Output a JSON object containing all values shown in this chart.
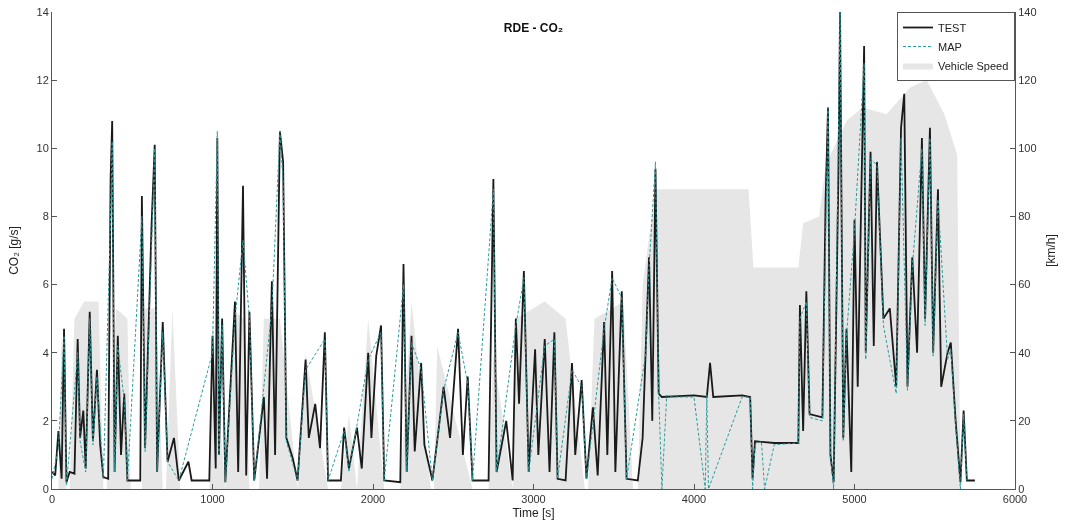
{
  "chart_data": {
    "type": "line",
    "title": "RDE - CO₂",
    "xlabel": "Time [s]",
    "ylabel": "CO₂ [g/s]",
    "y2label": "[km/h]",
    "xlim": [
      0,
      6000
    ],
    "xticks": [
      0,
      1000,
      2000,
      3000,
      4000,
      5000,
      6000
    ],
    "ylim": [
      0,
      14
    ],
    "yticks": [
      0,
      2,
      4,
      6,
      8,
      10,
      12,
      14
    ],
    "y2lim": [
      0,
      140
    ],
    "y2ticks": [
      0,
      20,
      40,
      60,
      80,
      100,
      120,
      140
    ],
    "legend": "top right",
    "series": [
      {
        "name": "TEST",
        "color": "#1a1a1a",
        "line_style": "solid",
        "x": [
          0,
          20,
          40,
          60,
          75,
          90,
          110,
          140,
          160,
          175,
          195,
          210,
          235,
          255,
          280,
          300,
          320,
          350,
          365,
          375,
          390,
          410,
          430,
          450,
          470,
          550,
          560,
          580,
          620,
          640,
          655,
          690,
          720,
          760,
          790,
          850,
          870,
          980,
          1000,
          1020,
          1030,
          1040,
          1060,
          1080,
          1140,
          1160,
          1190,
          1210,
          1230,
          1260,
          1320,
          1340,
          1370,
          1390,
          1420,
          1440,
          1460,
          1500,
          1530,
          1580,
          1600,
          1640,
          1670,
          1700,
          1720,
          1800,
          1820,
          1850,
          1900,
          1930,
          1970,
          1990,
          2020,
          2050,
          2070,
          2170,
          2190,
          2210,
          2240,
          2260,
          2300,
          2320,
          2370,
          2410,
          2440,
          2480,
          2530,
          2560,
          2590,
          2620,
          2720,
          2750,
          2770,
          2830,
          2870,
          2890,
          2910,
          2940,
          2970,
          3010,
          3030,
          3070,
          3100,
          3130,
          3150,
          3200,
          3240,
          3260,
          3300,
          3330,
          3370,
          3400,
          3440,
          3460,
          3490,
          3510,
          3550,
          3580,
          3650,
          3680,
          3700,
          3720,
          3740,
          3760,
          3780,
          3800,
          4000,
          4080,
          4100,
          4120,
          4300,
          4350,
          4365,
          4380,
          4500,
          4650,
          4660,
          4680,
          4700,
          4720,
          4800,
          4820,
          4835,
          4850,
          4870,
          4900,
          4910,
          4930,
          4950,
          4980,
          5000,
          5020,
          5060,
          5070,
          5100,
          5120,
          5140,
          5180,
          5220,
          5260,
          5290,
          5310,
          5330,
          5360,
          5390,
          5420,
          5440,
          5470,
          5490,
          5520,
          5540,
          5580,
          5600,
          5630,
          5660,
          5680,
          5700,
          5750
        ],
        "values": [
          0.5,
          0.4,
          1.7,
          0.3,
          4.7,
          0.2,
          0.5,
          0.45,
          4.4,
          1.5,
          2.3,
          0.6,
          5.2,
          1.4,
          3.5,
          1.3,
          0.35,
          0.3,
          9.1,
          10.8,
          0.5,
          4.5,
          1.0,
          2.8,
          0.25,
          0.25,
          8.6,
          1.2,
          7.7,
          10.1,
          0.5,
          4.9,
          0.8,
          1.5,
          0.25,
          0.8,
          0.25,
          0.25,
          4.5,
          0.6,
          10.3,
          1.0,
          5.0,
          0.2,
          5.5,
          0.5,
          8.9,
          0.4,
          5.2,
          0.25,
          2.7,
          0.3,
          6.1,
          1.0,
          10.5,
          9.6,
          1.5,
          0.9,
          0.25,
          3.8,
          1.5,
          2.5,
          1.2,
          4.6,
          0.25,
          0.25,
          1.8,
          0.6,
          1.8,
          0.6,
          4.0,
          1.5,
          3.9,
          4.8,
          0.25,
          0.2,
          6.6,
          0.5,
          4.5,
          1.1,
          3.7,
          1.3,
          0.25,
          1.8,
          3.0,
          1.5,
          4.7,
          1.0,
          3.3,
          0.25,
          0.25,
          9.1,
          0.5,
          2.0,
          0.25,
          5.0,
          2.5,
          6.4,
          0.5,
          4.1,
          1.0,
          4.4,
          0.5,
          4.6,
          0.3,
          0.25,
          3.7,
          1.0,
          3.2,
          0.3,
          2.4,
          0.4,
          4.9,
          1.0,
          6.4,
          0.5,
          5.8,
          0.3,
          0.25,
          1.5,
          4.2,
          6.8,
          2.0,
          9.4,
          2.8,
          2.7,
          2.75,
          2.7,
          3.7,
          2.7,
          2.75,
          2.7,
          0.3,
          1.4,
          1.35,
          1.35,
          5.4,
          1.7,
          5.8,
          2.2,
          2.1,
          8.5,
          11.2,
          1.0,
          0.2,
          9.3,
          14.0,
          1.5,
          4.7,
          0.5,
          7.9,
          3.0,
          13.0,
          4.0,
          9.9,
          4.2,
          9.6,
          5.0,
          5.3,
          3.0,
          10.6,
          11.6,
          3.0,
          6.8,
          4.0,
          10.3,
          5.0,
          10.6,
          4.0,
          8.8,
          3.0,
          4.0,
          4.3,
          2.0,
          0.2,
          2.3,
          0.25,
          0.25
        ]
      },
      {
        "name": "MAP",
        "color": "#2a9d9d",
        "line_style": "dashed",
        "x": [
          0,
          40,
          75,
          90,
          160,
          175,
          210,
          235,
          255,
          280,
          320,
          365,
          375,
          390,
          410,
          450,
          470,
          560,
          580,
          640,
          655,
          690,
          720,
          790,
          1000,
          1030,
          1040,
          1060,
          1080,
          1140,
          1190,
          1230,
          1260,
          1370,
          1420,
          1440,
          1460,
          1530,
          1580,
          1700,
          1720,
          1820,
          1850,
          1970,
          2050,
          2070,
          2190,
          2210,
          2240,
          2300,
          2370,
          2440,
          2530,
          2590,
          2620,
          2750,
          2770,
          2890,
          2940,
          2970,
          3070,
          3130,
          3150,
          3240,
          3300,
          3330,
          3440,
          3490,
          3550,
          3580,
          3700,
          3720,
          3760,
          3780,
          3800,
          3830,
          3850,
          4000,
          4070,
          4080,
          4090,
          4300,
          4350,
          4365,
          4380,
          4420,
          4440,
          4500,
          4650,
          4660,
          4700,
          4720,
          4800,
          4835,
          4850,
          4870,
          4910,
          4930,
          4950,
          5000,
          5060,
          5070,
          5100,
          5140,
          5180,
          5260,
          5290,
          5330,
          5360,
          5420,
          5440,
          5470,
          5490,
          5520,
          5580,
          5600,
          5630,
          5660,
          5680,
          5700
        ],
        "values": [
          0.3,
          1.2,
          4.5,
          0.1,
          4.0,
          1.4,
          0.5,
          5.0,
          1.3,
          3.3,
          0.3,
          8.0,
          10.2,
          0.5,
          4.2,
          2.6,
          0.25,
          8.0,
          1.1,
          10.0,
          0.5,
          4.6,
          0.8,
          0.25,
          4.0,
          10.5,
          1.0,
          4.8,
          0.2,
          5.0,
          7.3,
          5.0,
          0.25,
          5.3,
          10.5,
          9.0,
          1.4,
          0.25,
          3.5,
          4.4,
          0.25,
          1.7,
          0.5,
          3.8,
          4.6,
          0.25,
          6.0,
          0.5,
          4.3,
          3.5,
          0.25,
          2.9,
          4.6,
          3.1,
          0.25,
          8.8,
          0.5,
          4.8,
          6.2,
          0.5,
          4.2,
          4.4,
          0.3,
          3.5,
          3.0,
          0.3,
          4.7,
          6.2,
          5.6,
          0.3,
          4.0,
          6.5,
          9.6,
          2.8,
          0.0,
          2.75,
          2.7,
          2.7,
          0.0,
          2.75,
          0.0,
          2.7,
          2.7,
          0.0,
          1.3,
          1.4,
          0.0,
          1.3,
          1.35,
          5.0,
          5.5,
          2.1,
          2.0,
          11.2,
          1.0,
          0.0,
          14.0,
          1.4,
          4.5,
          7.6,
          12.5,
          3.8,
          9.7,
          9.5,
          4.8,
          2.8,
          10.3,
          2.9,
          6.5,
          10.0,
          4.8,
          10.3,
          3.9,
          8.5,
          3.8,
          4.1,
          1.9,
          0.0,
          2.2,
          0.25
        ]
      },
      {
        "name": "Vehicle Speed",
        "color": "#e6e6e6",
        "type": "area",
        "axis": "y2",
        "x": [
          0,
          40,
          60,
          90,
          110,
          140,
          200,
          290,
          320,
          340,
          400,
          470,
          490,
          560,
          580,
          650,
          690,
          710,
          750,
          800,
          980,
          1000,
          1080,
          1140,
          1200,
          1230,
          1290,
          1320,
          1420,
          1530,
          1580,
          1720,
          1800,
          1850,
          1900,
          1970,
          2070,
          2170,
          2240,
          2360,
          2380,
          2400,
          2620,
          2720,
          2750,
          2870,
          2890,
          3070,
          3200,
          3320,
          3340,
          3380,
          3560,
          3620,
          3650,
          3680,
          3760,
          4340,
          4370,
          4650,
          4680,
          4780,
          4820,
          4950,
          5050,
          5200,
          5350,
          5450,
          5560,
          5640,
          5660,
          5750
        ],
        "values": [
          0,
          0,
          45,
          0,
          0,
          50,
          55,
          55,
          0,
          0,
          53,
          50,
          0,
          0,
          53,
          53,
          0,
          0,
          53,
          0,
          0,
          50,
          0,
          52,
          50,
          0,
          0,
          50,
          50,
          0,
          40,
          0,
          0,
          22,
          0,
          50,
          0,
          0,
          55,
          0,
          0,
          42,
          0,
          0,
          40,
          0,
          50,
          55,
          50,
          0,
          0,
          50,
          55,
          0,
          0,
          60,
          88,
          88,
          65,
          65,
          78,
          80,
          95,
          108,
          112,
          110,
          118,
          120,
          110,
          98,
          0,
          0
        ]
      }
    ]
  }
}
